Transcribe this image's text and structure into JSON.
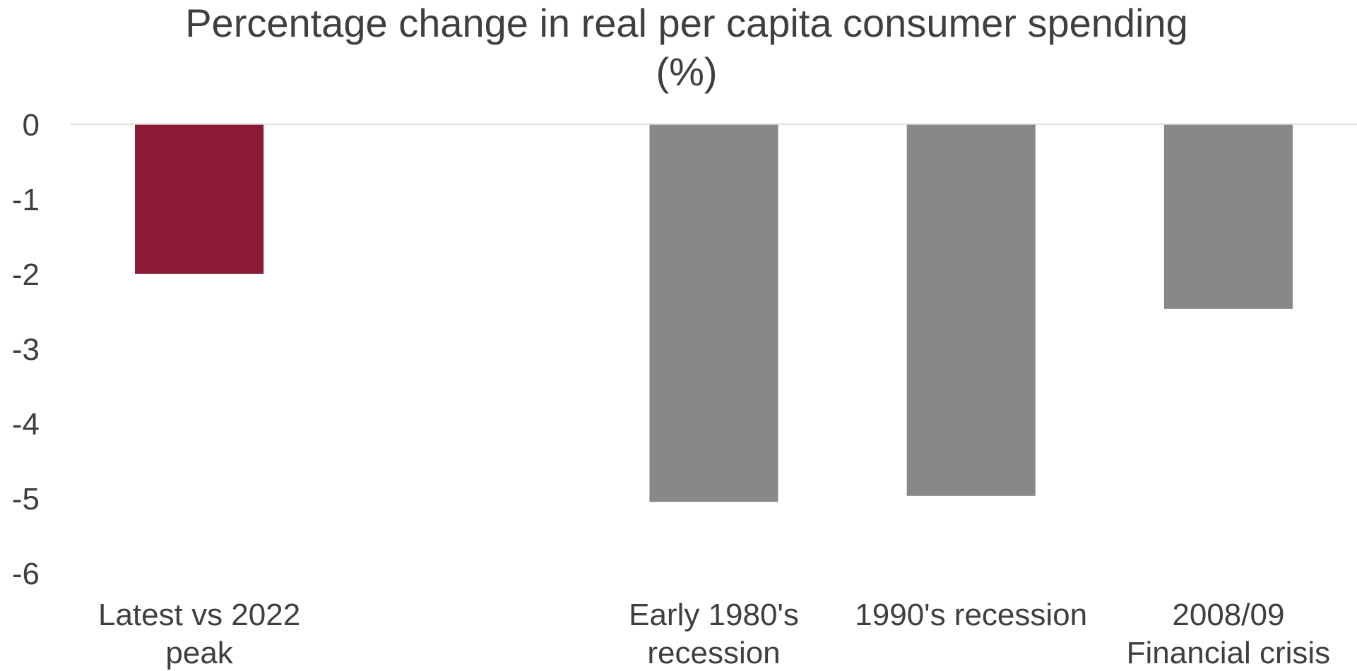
{
  "chart_data": {
    "type": "bar",
    "title_lines": [
      "Percentage change in real per capita consumer spending",
      "(%)"
    ],
    "xlabel": "",
    "ylabel": "",
    "ylim": [
      -6,
      0
    ],
    "y_ticks": [
      "0",
      "-1",
      "-2",
      "-3",
      "-4",
      "-5",
      "-6"
    ],
    "y_tick_values": [
      0,
      -1,
      -2,
      -3,
      -4,
      -5,
      -6
    ],
    "categories": [
      [
        "Latest vs 2022",
        "peak"
      ],
      [
        "",
        ""
      ],
      [
        "Early 1980's",
        "recession"
      ],
      [
        "1990's recession"
      ],
      [
        "2008/09",
        "Financial crisis"
      ]
    ],
    "values": [
      -2.0,
      null,
      -5.05,
      -4.97,
      -2.47
    ],
    "bar_colors": [
      "#8b1a34",
      "#87888a",
      "#87888a",
      "#87888a",
      "#87888a"
    ],
    "zero_line_color": "#d9d9d9",
    "grid": false,
    "legend": "none"
  }
}
